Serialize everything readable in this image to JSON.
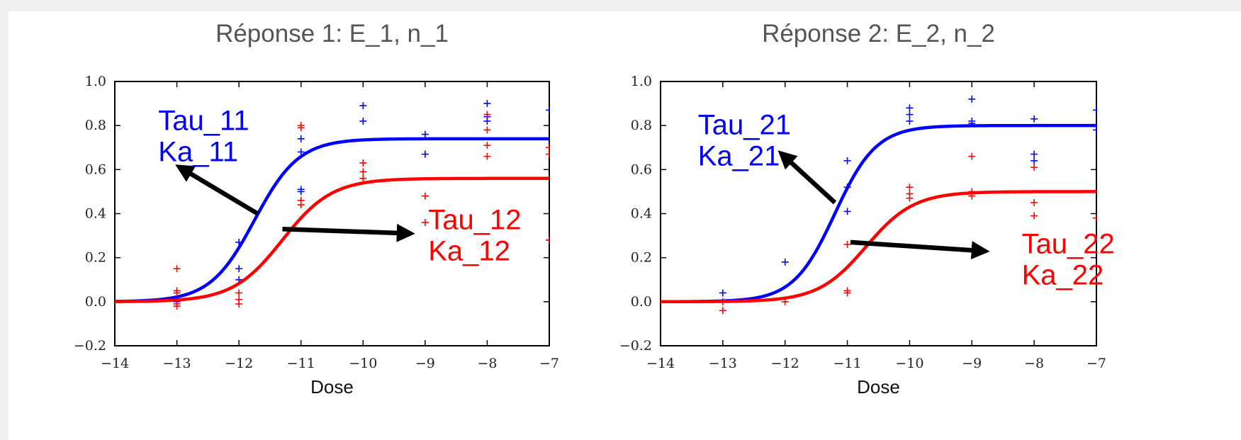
{
  "chart_data": [
    {
      "type": "line",
      "title": "Réponse 1:   E_1, n_1",
      "xlabel": "Dose",
      "ylabel": "",
      "xlim": [
        -14,
        -7
      ],
      "ylim": [
        -0.2,
        1.0
      ],
      "xticks": [
        -14,
        -13,
        -12,
        -11,
        -10,
        -9,
        -8,
        -7
      ],
      "yticks": [
        -0.2,
        0.0,
        0.2,
        0.4,
        0.6,
        0.8,
        1.0
      ],
      "xtick_labels": [
        "−14",
        "−13",
        "−12",
        "−11",
        "−10",
        "−9",
        "−8",
        "−7"
      ],
      "ytick_labels": [
        "−0.2",
        "0.0",
        "0.2",
        "0.4",
        "0.6",
        "0.8",
        "1.0"
      ],
      "grid": false,
      "series": [
        {
          "color": "#0000ff",
          "curve": {
            "top": 0.74,
            "ec50": -11.75,
            "slope": 2.8
          },
          "points": [
            [
              -13,
              0.0
            ],
            [
              -13,
              0.01
            ],
            [
              -12,
              0.27
            ],
            [
              -12,
              0.15
            ],
            [
              -12,
              0.1
            ],
            [
              -11,
              0.74
            ],
            [
              -11,
              0.68
            ],
            [
              -11,
              0.5
            ],
            [
              -11,
              0.51
            ],
            [
              -10,
              0.89
            ],
            [
              -10,
              0.82
            ],
            [
              -9,
              0.76
            ],
            [
              -9,
              0.67
            ],
            [
              -8,
              0.9
            ],
            [
              -8,
              0.84
            ],
            [
              -8,
              0.82
            ],
            [
              -7,
              0.87
            ]
          ]
        },
        {
          "color": "#ff0000",
          "curve": {
            "top": 0.56,
            "ec50": -11.3,
            "slope": 2.5
          },
          "points": [
            [
              -13,
              0.15
            ],
            [
              -13,
              0.05
            ],
            [
              -13,
              0.04
            ],
            [
              -13,
              -0.01
            ],
            [
              -13,
              -0.02
            ],
            [
              -12,
              0.04
            ],
            [
              -12,
              0.01
            ],
            [
              -12,
              -0.01
            ],
            [
              -11,
              0.8
            ],
            [
              -11,
              0.79
            ],
            [
              -11,
              0.46
            ],
            [
              -11,
              0.44
            ],
            [
              -10,
              0.63
            ],
            [
              -10,
              0.59
            ],
            [
              -10,
              0.56
            ],
            [
              -9,
              0.48
            ],
            [
              -9,
              0.36
            ],
            [
              -8,
              0.85
            ],
            [
              -8,
              0.78
            ],
            [
              -8,
              0.71
            ],
            [
              -8,
              0.66
            ],
            [
              -7,
              0.7
            ],
            [
              -7,
              0.67
            ],
            [
              -7,
              0.28
            ]
          ]
        }
      ],
      "annotations": [
        {
          "lines": [
            "Tau_11",
            "Ka_11"
          ],
          "color": "#0000ff",
          "text_at": [
            -13.3,
            0.78
          ],
          "arrow_from": [
            -11.7,
            0.4
          ],
          "arrow_to": [
            -12.95,
            0.61
          ]
        },
        {
          "lines": [
            "Tau_12",
            "Ka_12"
          ],
          "color": "#ff0000",
          "text_at": [
            -8.95,
            0.33
          ],
          "arrow_from": [
            -11.3,
            0.33
          ],
          "arrow_to": [
            -9.25,
            0.31
          ]
        }
      ]
    },
    {
      "type": "line",
      "title": "Réponse 2:   E_2, n_2",
      "xlabel": "Dose",
      "ylabel": "",
      "xlim": [
        -14,
        -7
      ],
      "ylim": [
        -0.2,
        1.0
      ],
      "xticks": [
        -14,
        -13,
        -12,
        -11,
        -10,
        -9,
        -8,
        -7
      ],
      "yticks": [
        -0.2,
        0.0,
        0.2,
        0.4,
        0.6,
        0.8,
        1.0
      ],
      "xtick_labels": [
        "−14",
        "−13",
        "−12",
        "−11",
        "−10",
        "−9",
        "−8",
        "−7"
      ],
      "ytick_labels": [
        "−0.2",
        "0.0",
        "0.2",
        "0.4",
        "0.6",
        "0.8",
        "1.0"
      ],
      "grid": false,
      "series": [
        {
          "color": "#0000ff",
          "curve": {
            "top": 0.8,
            "ec50": -11.2,
            "slope": 3.0
          },
          "points": [
            [
              -13,
              0.04
            ],
            [
              -12,
              0.18
            ],
            [
              -11,
              0.64
            ],
            [
              -11,
              0.52
            ],
            [
              -11,
              0.41
            ],
            [
              -10,
              0.88
            ],
            [
              -10,
              0.85
            ],
            [
              -10,
              0.82
            ],
            [
              -9,
              0.92
            ],
            [
              -9,
              0.82
            ],
            [
              -9,
              0.81
            ],
            [
              -8,
              0.83
            ],
            [
              -8,
              0.67
            ],
            [
              -8,
              0.64
            ],
            [
              -7,
              0.87
            ],
            [
              -7,
              0.78
            ]
          ]
        },
        {
          "color": "#ff0000",
          "curve": {
            "top": 0.5,
            "ec50": -10.7,
            "slope": 2.6
          },
          "points": [
            [
              -13,
              0.0
            ],
            [
              -13,
              -0.04
            ],
            [
              -12,
              0.0
            ],
            [
              -11,
              0.26
            ],
            [
              -11,
              0.05
            ],
            [
              -11,
              0.04
            ],
            [
              -10,
              0.52
            ],
            [
              -10,
              0.49
            ],
            [
              -10,
              0.47
            ],
            [
              -9,
              0.66
            ],
            [
              -9,
              0.5
            ],
            [
              -9,
              0.48
            ],
            [
              -8,
              0.61
            ],
            [
              -8,
              0.45
            ],
            [
              -8,
              0.39
            ],
            [
              -7,
              0.38
            ]
          ]
        }
      ],
      "annotations": [
        {
          "lines": [
            "Tau_21",
            "Ka_21"
          ],
          "color": "#0000ff",
          "text_at": [
            -13.4,
            0.76
          ],
          "arrow_from": [
            -11.2,
            0.45
          ],
          "arrow_to": [
            -12.05,
            0.67
          ]
        },
        {
          "lines": [
            "Tau_22",
            "Ka_22"
          ],
          "color": "#ff0000",
          "text_at": [
            -8.2,
            0.22
          ],
          "arrow_from": [
            -10.95,
            0.27
          ],
          "arrow_to": [
            -8.8,
            0.23
          ]
        }
      ]
    }
  ]
}
